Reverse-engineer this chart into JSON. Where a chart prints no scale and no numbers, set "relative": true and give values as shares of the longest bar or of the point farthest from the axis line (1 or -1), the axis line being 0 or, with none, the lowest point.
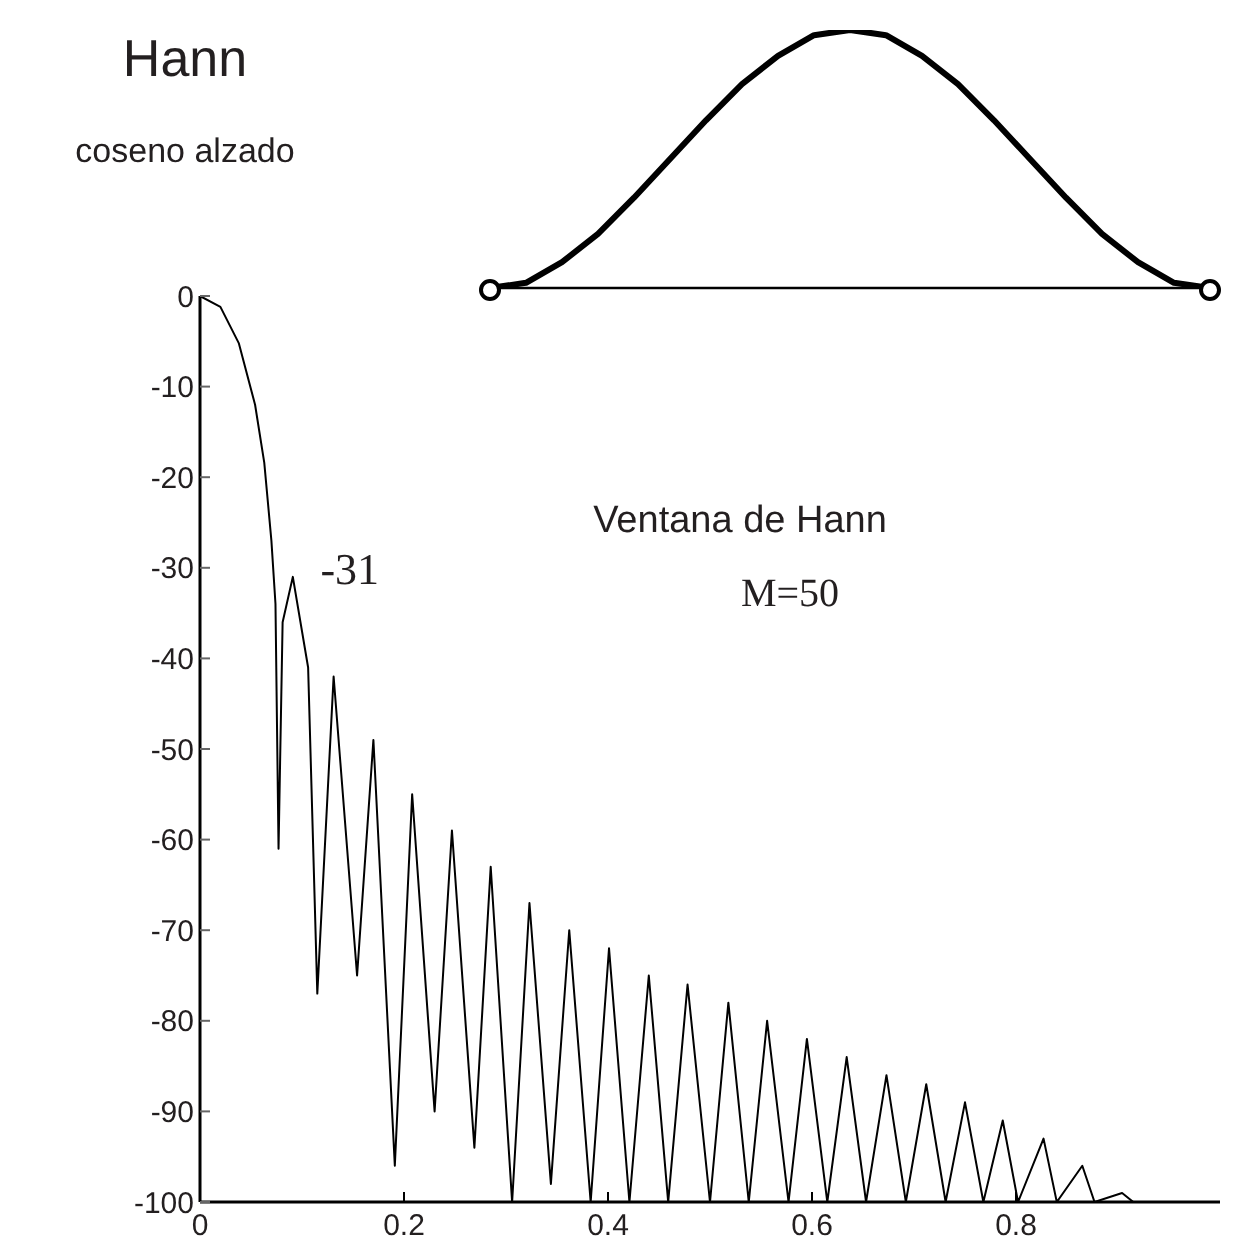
{
  "chart_data": [
    {
      "type": "line",
      "title": "Hann",
      "subtitle": "coseno alzado",
      "relative": true,
      "categories": [
        null,
        null,
        null,
        null,
        null,
        null,
        null,
        null,
        null,
        null,
        null,
        null,
        null,
        null,
        null,
        null,
        null,
        null,
        null,
        null,
        null
      ],
      "series": [
        {
          "type": "line",
          "color": "#000000",
          "values": [
            0,
            0.02,
            0.1,
            0.21,
            0.35,
            0.5,
            0.65,
            0.79,
            0.9,
            0.98,
            1,
            0.98,
            0.9,
            0.79,
            0.65,
            0.5,
            0.35,
            0.21,
            0.1,
            0.02,
            0
          ]
        }
      ]
    },
    {
      "type": "line",
      "color": "#000000",
      "x": [
        0,
        0.02,
        0.038,
        0.054,
        0.063,
        0.07,
        0.074,
        0.077,
        0.081,
        0.091,
        0.106,
        0.115,
        0.131,
        0.154,
        0.17,
        0.191,
        0.208,
        0.23,
        0.247,
        0.269,
        0.285,
        0.306,
        0.323,
        0.344,
        0.362,
        0.383,
        0.401,
        0.421,
        0.44,
        0.459,
        0.478,
        0.5,
        0.518,
        0.538,
        0.556,
        0.577,
        0.595,
        0.615,
        0.634,
        0.653,
        0.673,
        0.692,
        0.712,
        0.731,
        0.75,
        0.768,
        0.787,
        0.802,
        0.827,
        0.84,
        0.865,
        0.877,
        0.904,
        0.915,
        1.0
      ],
      "values": [
        0,
        -1.2,
        -5.2,
        -12,
        -18.4,
        -27,
        -34,
        -61,
        -36,
        -31,
        -41,
        -77,
        -42,
        -75,
        -49,
        -96,
        -55,
        -90,
        -59,
        -94,
        -63,
        -100,
        -67,
        -98,
        -70,
        -100,
        -72,
        -100,
        -75,
        -100,
        -76,
        -100,
        -78,
        -100,
        -80,
        -100,
        -82,
        -100,
        -84,
        -100,
        -86,
        -100,
        -87,
        -100,
        -89,
        -100,
        -91,
        -100,
        -93,
        -100,
        -96,
        -100,
        -99,
        -100,
        -100
      ],
      "xlim": [
        0,
        1
      ],
      "xticks": [
        0,
        0.2,
        0.4,
        0.6,
        0.8
      ],
      "ylim": [
        -100,
        0
      ],
      "yticks": [
        0,
        -10,
        -20,
        -30,
        -40,
        -50,
        -60,
        -70,
        -80,
        -90,
        -100
      ],
      "annotations": [
        "Ventana de Hann",
        "M=50",
        {
          "text": "-31",
          "x": 0.091,
          "y": -31
        }
      ]
    }
  ]
}
